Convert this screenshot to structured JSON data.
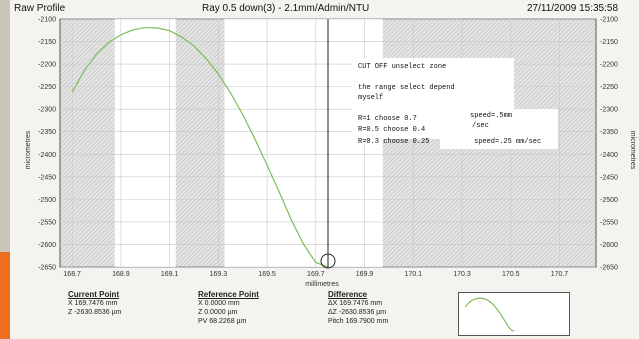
{
  "header": {
    "left_title": "Raw Profile",
    "center_title": "Ray 0.5 down(3) - 2.1mm/Admin/NTU",
    "timestamp": "27/11/2009 15:35:58"
  },
  "chart_data": {
    "type": "line",
    "xlabel": "millimetres",
    "ylabel": "micrometres",
    "x_ticks": [
      "168.7",
      "168.9",
      "169.1",
      "169.3",
      "169.5",
      "169.7",
      "169.9",
      "170.1",
      "170.3",
      "170.5",
      "170.7"
    ],
    "y_ticks": [
      "-2100",
      "-2150",
      "-2200",
      "-2250",
      "-2300",
      "-2350",
      "-2400",
      "-2450",
      "-2500",
      "-2550",
      "-2600",
      "-2650"
    ],
    "xlim": [
      168.65,
      170.85
    ],
    "ylim": [
      -2650,
      -2100
    ],
    "grid": true,
    "series": [
      {
        "color": "#7bbf5a",
        "x": [
          168.7,
          168.75,
          168.8,
          168.85,
          168.9,
          168.95,
          169.0,
          169.05,
          169.1,
          169.15,
          169.2,
          169.25,
          169.3,
          169.35,
          169.4,
          169.45,
          169.5,
          169.55,
          169.6,
          169.65,
          169.7,
          169.75
        ],
        "y": [
          -2262,
          -2214,
          -2178,
          -2152,
          -2135,
          -2124,
          -2119,
          -2120,
          -2126,
          -2140,
          -2160,
          -2188,
          -2222,
          -2264,
          -2312,
          -2366,
          -2424,
          -2484,
          -2546,
          -2600,
          -2640,
          -2650
        ]
      }
    ],
    "cursor_x": 169.75,
    "annotations": [
      "CUT OFF unselect zone",
      "the range select depend",
      "myself",
      "R=1 choose 0.7",
      "R=0.5 choose 0.4",
      "R=0.3 choose 0.25",
      "speed=.5mm",
      "/sec",
      "speed=.25 mm/sec"
    ]
  },
  "footer": {
    "current_point": {
      "title": "Current Point",
      "x": "X 169.7476 mm",
      "z": "Z -2630.8536 µm"
    },
    "reference_point": {
      "title": "Reference Point",
      "x": "X 0.0000 mm",
      "z": "Z 0.0000 µm",
      "pv": "PV 68.2268 µm"
    },
    "difference": {
      "title": "Difference",
      "dx": "ΔX 169.7476 mm",
      "dz": "ΔZ -2630.8536 µm",
      "pitch": "Pitch 169.7900 mm"
    }
  }
}
